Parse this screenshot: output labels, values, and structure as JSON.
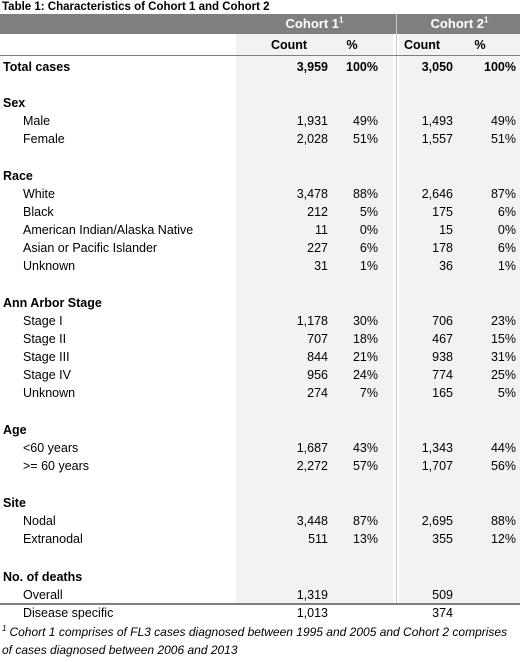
{
  "title": "Table 1: Characteristics of Cohort 1 and Cohort 2",
  "header": {
    "cohort1": "Cohort 1",
    "cohort1_sup": "1",
    "cohort2": "Cohort 2",
    "cohort2_sup": "1",
    "count": "Count",
    "percent": "%"
  },
  "rows": [
    {
      "label": "Total cases",
      "bold": true,
      "c1": "3,959",
      "p1": "100%",
      "c2": "3,050",
      "p2": "100%"
    },
    {
      "label": "Sex",
      "bold": true
    },
    {
      "label": "Male",
      "c1": "1,931",
      "p1": "49%",
      "c2": "1,493",
      "p2": "49%"
    },
    {
      "label": "Female",
      "c1": "2,028",
      "p1": "51%",
      "c2": "1,557",
      "p2": "51%"
    },
    {
      "label": "Race",
      "bold": true
    },
    {
      "label": "White",
      "c1": "3,478",
      "p1": "88%",
      "c2": "2,646",
      "p2": "87%"
    },
    {
      "label": "Black",
      "c1": "212",
      "p1": "5%",
      "c2": "175",
      "p2": "6%"
    },
    {
      "label": "American Indian/Alaska Native",
      "c1": "11",
      "p1": "0%",
      "c2": "15",
      "p2": "0%"
    },
    {
      "label": "Asian or Pacific Islander",
      "c1": "227",
      "p1": "6%",
      "c2": "178",
      "p2": "6%"
    },
    {
      "label": "Unknown",
      "c1": "31",
      "p1": "1%",
      "c2": "36",
      "p2": "1%"
    },
    {
      "label": "Ann Arbor Stage",
      "bold": true
    },
    {
      "label": "Stage I",
      "c1": "1,178",
      "p1": "30%",
      "c2": "706",
      "p2": "23%"
    },
    {
      "label": "Stage II",
      "c1": "707",
      "p1": "18%",
      "c2": "467",
      "p2": "15%"
    },
    {
      "label": "Stage III",
      "c1": "844",
      "p1": "21%",
      "c2": "938",
      "p2": "31%"
    },
    {
      "label": "Stage IV",
      "c1": "956",
      "p1": "24%",
      "c2": "774",
      "p2": "25%"
    },
    {
      "label": "Unknown",
      "c1": "274",
      "p1": "7%",
      "c2": "165",
      "p2": "5%"
    },
    {
      "label": "Age",
      "bold": true
    },
    {
      "label": "<60 years",
      "c1": "1,687",
      "p1": "43%",
      "c2": "1,343",
      "p2": "44%"
    },
    {
      "label": ">= 60 years",
      "c1": "2,272",
      "p1": "57%",
      "c2": "1,707",
      "p2": "56%"
    },
    {
      "label": "Site",
      "bold": true
    },
    {
      "label": "Nodal",
      "c1": "3,448",
      "p1": "87%",
      "c2": "2,695",
      "p2": "88%"
    },
    {
      "label": "Extranodal",
      "c1": "511",
      "p1": "13%",
      "c2": "355",
      "p2": "12%"
    },
    {
      "label": "No. of deaths",
      "bold": true
    },
    {
      "label": "Overall",
      "c1": "1,319",
      "c2": "509"
    },
    {
      "label": "Disease specific",
      "c1": "1,013",
      "c2": "374"
    }
  ],
  "footnote": {
    "marker": "1",
    "text": "Cohort 1 comprises of FL3 cases diagnosed between 1995 and 2005 and Cohort 2 comprises of cases diagnosed between 2006 and 2013"
  }
}
